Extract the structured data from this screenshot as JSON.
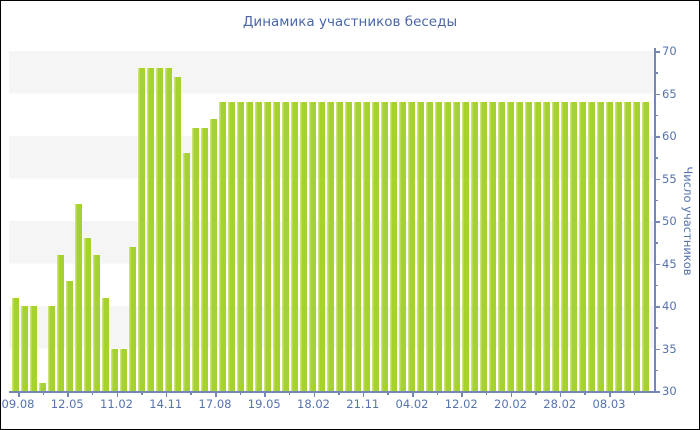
{
  "title": "Динамика участников беседы",
  "colors": {
    "bar": "#a6d22f",
    "bar_highlight": "#cbe373",
    "axis": "#7487b6",
    "tick_label": "#5673ae",
    "title_text": "#4a67a8",
    "stripe": "#f5f5f5",
    "background": "#ffffff"
  },
  "chart_data": {
    "type": "bar",
    "title": "Динамика участников беседы",
    "xlabel": "",
    "ylabel": "Число участников",
    "ylim": [
      30,
      70
    ],
    "ytick_interval": 5,
    "yticks": [
      70,
      65,
      60,
      55,
      50,
      45,
      40,
      35,
      30
    ],
    "xtick_labels": [
      "09.08",
      "12.05",
      "11.02",
      "14.11",
      "17.08",
      "19.05",
      "18.02",
      "21.11",
      "04.02",
      "12.02",
      "20.02",
      "28.02",
      "08.03"
    ],
    "grid": "alternating horizontal bands every 5 units",
    "legend_position": "none",
    "y_axis_side": "right",
    "values": [
      41,
      40,
      40,
      31,
      40,
      46,
      43,
      52,
      48,
      46,
      41,
      35,
      35,
      47,
      68,
      68,
      68,
      68,
      67,
      58,
      61,
      61,
      62,
      64,
      64,
      64,
      64,
      64,
      64,
      64,
      64,
      64,
      64,
      64,
      64,
      64,
      64,
      64,
      64,
      64,
      64,
      64,
      64,
      64,
      64,
      64,
      64,
      64,
      64,
      64,
      64,
      64,
      64,
      64,
      64,
      64,
      64,
      64,
      64,
      64,
      64,
      64,
      64,
      64,
      64,
      64,
      64,
      64,
      64,
      64,
      64
    ]
  }
}
